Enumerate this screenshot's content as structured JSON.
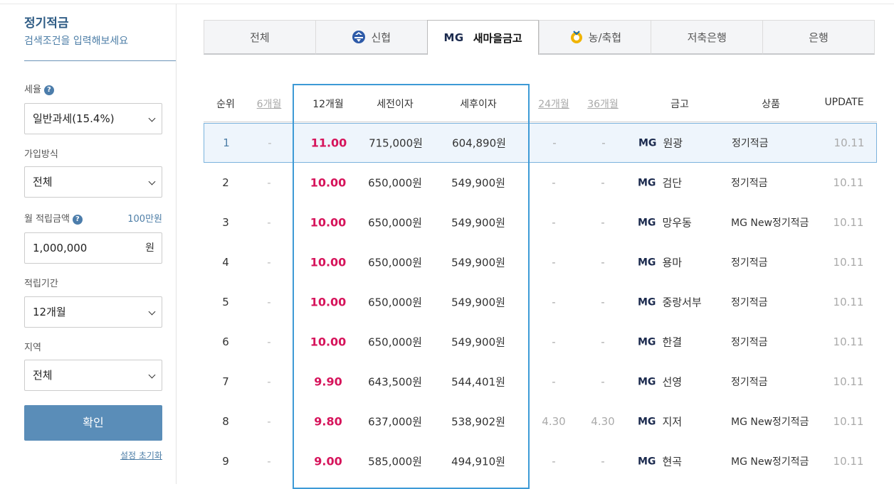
{
  "sidebar": {
    "title": "정기적금",
    "subtitle": "검색조건을 입력해보세요",
    "tax": {
      "label": "세율",
      "value": "일반과세(15.4%)"
    },
    "join": {
      "label": "가입방식",
      "value": "전체"
    },
    "amount": {
      "label": "월 적립금액",
      "hint": "100만원",
      "value": "1,000,000",
      "unit": "원"
    },
    "period": {
      "label": "적립기간",
      "value": "12개월"
    },
    "region": {
      "label": "지역",
      "value": "전체"
    },
    "confirm_label": "확인",
    "reset_label": "설정 초기화",
    "help_glyph": "?"
  },
  "tabs": [
    {
      "label": "전체",
      "icon": ""
    },
    {
      "label": "신협",
      "icon": "shinhyup-icon"
    },
    {
      "label": "새마을금고",
      "icon": "mg-logo",
      "logo_text": "MG",
      "active": true
    },
    {
      "label": "농/축협",
      "icon": "nh-icon"
    },
    {
      "label": "저축은행",
      "icon": ""
    },
    {
      "label": "은행",
      "icon": ""
    }
  ],
  "table": {
    "headers": {
      "rank": "순위",
      "m6": "6개월",
      "m12": "12개월",
      "pre_tax": "세전이자",
      "post_tax": "세후이자",
      "m24": "24개월",
      "m36": "36개월",
      "bank": "금고",
      "product": "상품",
      "update": "UPDATE"
    },
    "rows": [
      {
        "rank": "1",
        "m6": "-",
        "m12": "11.00",
        "pre": "715,000원",
        "post": "604,890원",
        "m24": "-",
        "m36": "-",
        "bank": "원광",
        "product": "정기적금",
        "update": "10.11"
      },
      {
        "rank": "2",
        "m6": "-",
        "m12": "10.00",
        "pre": "650,000원",
        "post": "549,900원",
        "m24": "-",
        "m36": "-",
        "bank": "검단",
        "product": "정기적금",
        "update": "10.11"
      },
      {
        "rank": "3",
        "m6": "-",
        "m12": "10.00",
        "pre": "650,000원",
        "post": "549,900원",
        "m24": "-",
        "m36": "-",
        "bank": "망우동",
        "product": "MG New정기적금",
        "update": "10.11"
      },
      {
        "rank": "4",
        "m6": "-",
        "m12": "10.00",
        "pre": "650,000원",
        "post": "549,900원",
        "m24": "-",
        "m36": "-",
        "bank": "용마",
        "product": "정기적금",
        "update": "10.11"
      },
      {
        "rank": "5",
        "m6": "-",
        "m12": "10.00",
        "pre": "650,000원",
        "post": "549,900원",
        "m24": "-",
        "m36": "-",
        "bank": "중랑서부",
        "product": "정기적금",
        "update": "10.11"
      },
      {
        "rank": "6",
        "m6": "-",
        "m12": "10.00",
        "pre": "650,000원",
        "post": "549,900원",
        "m24": "-",
        "m36": "-",
        "bank": "한결",
        "product": "정기적금",
        "update": "10.11"
      },
      {
        "rank": "7",
        "m6": "-",
        "m12": "9.90",
        "pre": "643,500원",
        "post": "544,401원",
        "m24": "-",
        "m36": "-",
        "bank": "선영",
        "product": "정기적금",
        "update": "10.11"
      },
      {
        "rank": "8",
        "m6": "-",
        "m12": "9.80",
        "pre": "637,000원",
        "post": "538,902원",
        "m24": "4.30",
        "m36": "4.30",
        "bank": "지저",
        "product": "MG New정기적금",
        "update": "10.11"
      },
      {
        "rank": "9",
        "m6": "-",
        "m12": "9.00",
        "pre": "585,000원",
        "post": "494,910원",
        "m24": "-",
        "m36": "-",
        "bank": "현곡",
        "product": "MG New정기적금",
        "update": "10.11"
      }
    ],
    "bank_logo_text": "MG"
  },
  "colors": {
    "accent": "#5a8db8",
    "rate": "#d6145b",
    "highlight_border": "#3d9ad6",
    "title": "#2f5c85"
  }
}
